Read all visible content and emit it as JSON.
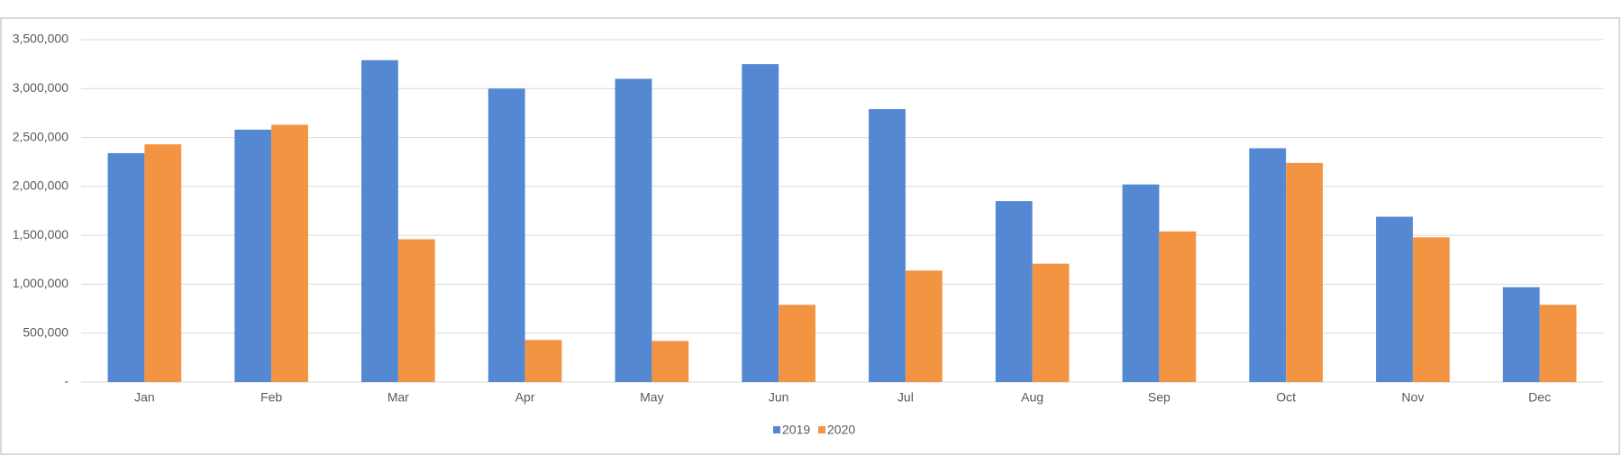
{
  "chart_data": {
    "type": "bar",
    "categories": [
      "Jan",
      "Feb",
      "Mar",
      "Apr",
      "May",
      "Jun",
      "Jul",
      "Aug",
      "Sep",
      "Oct",
      "Nov",
      "Dec"
    ],
    "series": [
      {
        "name": "2019",
        "color": "#5588d3",
        "values": [
          2340000,
          2580000,
          3290000,
          3000000,
          3100000,
          3250000,
          2790000,
          1850000,
          2020000,
          2390000,
          1690000,
          970000
        ]
      },
      {
        "name": "2020",
        "color": "#f39442",
        "values": [
          2430000,
          2630000,
          1460000,
          430000,
          420000,
          790000,
          1140000,
          1210000,
          1540000,
          2240000,
          1480000,
          790000
        ]
      }
    ],
    "ylim": [
      0,
      3500000
    ],
    "yticks": [
      {
        "value": 0,
        "label": "-"
      },
      {
        "value": 500000,
        "label": "500,000"
      },
      {
        "value": 1000000,
        "label": "1,000,000"
      },
      {
        "value": 1500000,
        "label": "1,500,000"
      },
      {
        "value": 2000000,
        "label": "2,000,000"
      },
      {
        "value": 2500000,
        "label": "2,500,000"
      },
      {
        "value": 3000000,
        "label": "3,000,000"
      },
      {
        "value": 3500000,
        "label": "3,500,000"
      }
    ],
    "grid": true
  }
}
